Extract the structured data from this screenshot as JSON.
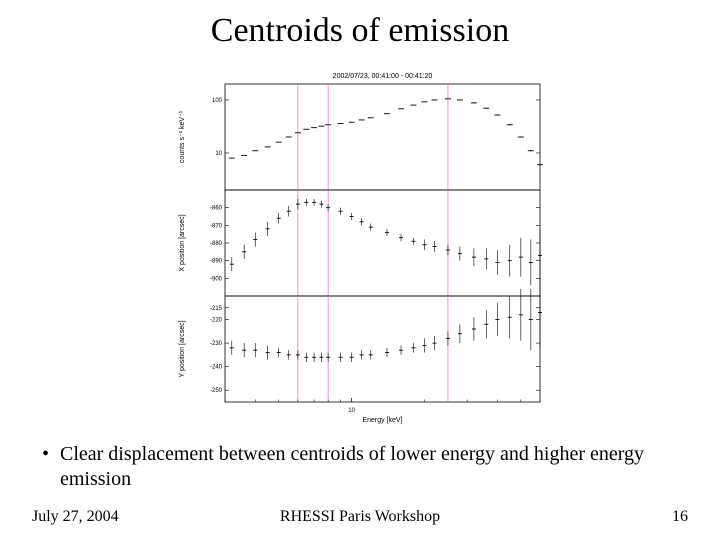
{
  "title": "Centroids of emission",
  "bullet_text": "Clear displacement between centroids of lower energy and higher energy emission",
  "footer": {
    "date": "July 27, 2004",
    "venue": "RHESSI Paris Workshop",
    "page": "16"
  },
  "figure": {
    "plot_title": "2002/07/23, 00:41:00 - 00:41:20",
    "xlabel": "Energy [keV]",
    "xscale": "log",
    "xlim": [
      3,
      60
    ],
    "xtick_major": 10,
    "background_color": "#ffffff",
    "axis_color": "#000000",
    "data_color": "#000000",
    "vline_color": "#ee66cc",
    "vlines_kev": [
      6,
      8,
      25
    ],
    "title_fontsize": 7,
    "label_fontsize": 7,
    "tick_fontsize": 6,
    "panels": [
      {
        "ylabel": "counts s⁻¹ keV⁻¹",
        "yscale": "log",
        "ylim": [
          2,
          200
        ],
        "yticks": [
          10,
          100
        ],
        "data": {
          "x": [
            3.2,
            3.6,
            4.0,
            4.5,
            5.0,
            5.5,
            6.0,
            6.5,
            7.0,
            7.5,
            8.0,
            9.0,
            10,
            11,
            12,
            14,
            16,
            18,
            20,
            22,
            25,
            28,
            32,
            36,
            40,
            45,
            50,
            55,
            60
          ],
          "y": [
            8,
            9,
            11,
            13,
            16,
            20,
            24,
            28,
            30,
            32,
            34,
            36,
            38,
            42,
            46,
            55,
            68,
            80,
            92,
            100,
            105,
            100,
            88,
            70,
            52,
            34,
            20,
            11,
            6
          ]
        }
      },
      {
        "ylabel": "X position [arcsec]",
        "yscale": "linear",
        "ylim": [
          -910,
          -850
        ],
        "yticks": [
          -900,
          -890,
          -880,
          -870,
          -860
        ],
        "data": {
          "x": [
            3.2,
            3.6,
            4.0,
            4.5,
            5.0,
            5.5,
            6.0,
            6.5,
            7.0,
            7.5,
            8.0,
            9.0,
            10,
            11,
            12,
            14,
            16,
            18,
            20,
            22,
            25,
            28,
            32,
            36,
            40,
            45,
            50,
            55,
            60
          ],
          "y": [
            -892,
            -885,
            -878,
            -872,
            -866,
            -862,
            -858,
            -857,
            -857,
            -858,
            -860,
            -862,
            -865,
            -868,
            -871,
            -874,
            -877,
            -879,
            -881,
            -882,
            -884,
            -886,
            -888,
            -889,
            -891,
            -890,
            -888,
            -891,
            -887
          ],
          "yerr": [
            4,
            4,
            4,
            4,
            3,
            3,
            3,
            2,
            2,
            2,
            2,
            2,
            2,
            2,
            2,
            2,
            2,
            2,
            3,
            3,
            3,
            4,
            5,
            6,
            7,
            9,
            11,
            13,
            15
          ]
        }
      },
      {
        "ylabel": "Y position [arcsec]",
        "yscale": "linear",
        "ylim": [
          -255,
          -210
        ],
        "yticks": [
          -250,
          -240,
          -230,
          -220,
          -215
        ],
        "data": {
          "x": [
            3.2,
            3.6,
            4.0,
            4.5,
            5.0,
            5.5,
            6.0,
            6.5,
            7.0,
            7.5,
            8.0,
            9.0,
            10,
            11,
            12,
            14,
            16,
            18,
            20,
            22,
            25,
            28,
            32,
            36,
            40,
            45,
            50,
            55,
            60
          ],
          "y": [
            -232,
            -233,
            -233,
            -234,
            -234,
            -235,
            -235,
            -236,
            -236,
            -236,
            -236,
            -236,
            -236,
            -235,
            -235,
            -234,
            -233,
            -232,
            -231,
            -230,
            -228,
            -226,
            -224,
            -222,
            -220,
            -219,
            -218,
            -220,
            -217
          ],
          "yerr": [
            3,
            3,
            3,
            3,
            2,
            2,
            2,
            2,
            2,
            2,
            2,
            2,
            2,
            2,
            2,
            2,
            2,
            2,
            3,
            3,
            3,
            4,
            5,
            6,
            7,
            9,
            11,
            13,
            15
          ]
        }
      }
    ]
  }
}
